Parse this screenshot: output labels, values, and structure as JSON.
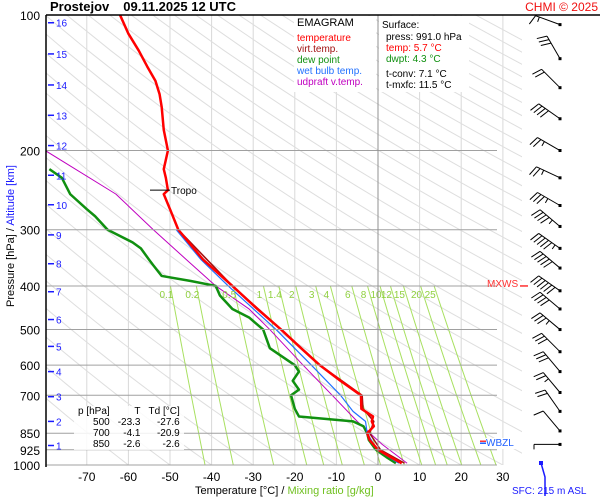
{
  "header": {
    "station": "Prostejov",
    "datetime": "09.11.2025 12 UTC",
    "copyright": "CHMI © 2025"
  },
  "legend": {
    "title": "EMAGRAM",
    "items": [
      {
        "label": "temperature",
        "color": "#ff0000"
      },
      {
        "label": "virt.temp.",
        "color": "#a01010"
      },
      {
        "label": "dew point",
        "color": "#109010"
      },
      {
        "label": "wet bulb temp.",
        "color": "#2070ff"
      },
      {
        "label": "udpraft v.temp.",
        "color": "#c000c0"
      }
    ]
  },
  "surface": {
    "title": "Surface:",
    "press": "press: 991.0 hPa",
    "temp": "temp: 5.7 °C",
    "dwpt": "dwpt: 4.3 °C",
    "tconv": "t-conv: 7.1 °C",
    "tmxfc": "t-mxfc: 11.5 °C"
  },
  "table": {
    "headers": [
      "p [hPa]",
      "T",
      "Td [°C]"
    ],
    "rows": [
      [
        "500",
        "-23.3",
        "-27.6"
      ],
      [
        "700",
        "-4.1",
        "-20.9"
      ],
      [
        "850",
        "-2.6",
        "-2.6"
      ]
    ]
  },
  "labels": {
    "ylabel_pressure": "Pressure [hPa]",
    "ylabel_sep": " / ",
    "ylabel_alt": "Altitude [km]",
    "xlabel_temp": "Temperature [°C]",
    "xlabel_sep": " / ",
    "xlabel_mix": "Mixing ratio [g/kg]",
    "sfc": "SFC: 215 m ASL",
    "mxws": "MXWS",
    "wbzl": "WBZL",
    "tropo": "Tropo"
  },
  "chart_data": {
    "type": "line",
    "title": "Prostejov 09.11.2025 12 UTC",
    "xlabel": "Temperature [°C] / Mixing ratio [g/kg]",
    "ylabel": "Pressure [hPa] / Altitude [km]",
    "xlim": [
      -80,
      35
    ],
    "ylim": [
      1000,
      100
    ],
    "x_ticks": [
      -70,
      -60,
      -50,
      -40,
      -30,
      -20,
      -10,
      0,
      10,
      20,
      30
    ],
    "p_ticks": [
      100,
      200,
      300,
      400,
      500,
      600,
      700,
      850,
      925,
      1000
    ],
    "alt_ticks": [
      {
        "km": 1,
        "p": 905
      },
      {
        "km": 2,
        "p": 800
      },
      {
        "km": 3,
        "p": 705
      },
      {
        "km": 4,
        "p": 620
      },
      {
        "km": 5,
        "p": 545
      },
      {
        "km": 6,
        "p": 475
      },
      {
        "km": 7,
        "p": 412
      },
      {
        "km": 8,
        "p": 357
      },
      {
        "km": 9,
        "p": 308
      },
      {
        "km": 10,
        "p": 264
      },
      {
        "km": 11,
        "p": 227
      },
      {
        "km": 12,
        "p": 195
      },
      {
        "km": 13,
        "p": 167
      },
      {
        "km": 14,
        "p": 143
      },
      {
        "km": 15,
        "p": 122
      },
      {
        "km": 16,
        "p": 104
      }
    ],
    "mixing_ratios": [
      "0.1",
      "0.2",
      "0.5",
      "1",
      "1.4",
      "2",
      "3",
      "4",
      "6",
      "8",
      "10",
      "12",
      "15",
      "20",
      "25"
    ],
    "tropopause_p": 245,
    "mxws_p": 400,
    "wbzl_p": 890,
    "series": [
      {
        "name": "temperature",
        "color": "#ff0000",
        "points": [
          [
            991,
            5.7
          ],
          [
            960,
            3
          ],
          [
            925,
            0
          ],
          [
            880,
            -2
          ],
          [
            850,
            -2.6
          ],
          [
            820,
            -1
          ],
          [
            800,
            -1.5
          ],
          [
            780,
            -1.2
          ],
          [
            750,
            -4
          ],
          [
            700,
            -4.1
          ],
          [
            650,
            -9
          ],
          [
            600,
            -14
          ],
          [
            550,
            -18.5
          ],
          [
            500,
            -23.3
          ],
          [
            450,
            -29
          ],
          [
            400,
            -35
          ],
          [
            350,
            -42
          ],
          [
            320,
            -45.5
          ],
          [
            300,
            -48
          ],
          [
            270,
            -50
          ],
          [
            250,
            -51.5
          ],
          [
            245,
            -50.5
          ],
          [
            230,
            -51
          ],
          [
            220,
            -51.5
          ],
          [
            200,
            -50.5
          ],
          [
            180,
            -51.5
          ],
          [
            160,
            -52
          ],
          [
            150,
            -52.5
          ],
          [
            140,
            -53.5
          ],
          [
            130,
            -55.5
          ],
          [
            120,
            -57.5
          ],
          [
            110,
            -60
          ],
          [
            100,
            -62
          ]
        ]
      },
      {
        "name": "virt.temp.",
        "color": "#a01010",
        "points": [
          [
            991,
            6.4
          ],
          [
            925,
            0.6
          ],
          [
            850,
            -2
          ],
          [
            800,
            -1
          ],
          [
            750,
            -3.6
          ],
          [
            700,
            -3.8
          ],
          [
            600,
            -13.9
          ],
          [
            500,
            -23.2
          ],
          [
            400,
            -35
          ],
          [
            300,
            -48
          ]
        ]
      },
      {
        "name": "dew point",
        "color": "#109010",
        "points": [
          [
            991,
            4.3
          ],
          [
            960,
            2
          ],
          [
            925,
            -0.5
          ],
          [
            880,
            -2.2
          ],
          [
            850,
            -2.6
          ],
          [
            820,
            -3.5
          ],
          [
            800,
            -6
          ],
          [
            780,
            -19
          ],
          [
            750,
            -20
          ],
          [
            700,
            -20.9
          ],
          [
            680,
            -19
          ],
          [
            650,
            -20.5
          ],
          [
            620,
            -19
          ],
          [
            600,
            -20
          ],
          [
            550,
            -26
          ],
          [
            500,
            -27.6
          ],
          [
            470,
            -31
          ],
          [
            450,
            -35
          ],
          [
            420,
            -38
          ],
          [
            400,
            -39
          ],
          [
            390,
            -45
          ],
          [
            380,
            -52
          ],
          [
            360,
            -54
          ],
          [
            350,
            -55
          ],
          [
            330,
            -57
          ],
          [
            320,
            -59
          ],
          [
            300,
            -65
          ],
          [
            280,
            -68
          ],
          [
            270,
            -70
          ],
          [
            250,
            -74
          ],
          [
            230,
            -76
          ],
          [
            220,
            -79
          ]
        ]
      },
      {
        "name": "wet bulb temp.",
        "color": "#2070ff",
        "points": [
          [
            991,
            5
          ],
          [
            925,
            -0.2
          ],
          [
            850,
            -2.6
          ],
          [
            800,
            -3
          ],
          [
            760,
            -6
          ],
          [
            700,
            -9
          ],
          [
            600,
            -16
          ],
          [
            500,
            -24.5
          ],
          [
            400,
            -36
          ],
          [
            350,
            -42.5
          ],
          [
            300,
            -48.5
          ]
        ]
      },
      {
        "name": "udpraft v.temp.",
        "color": "#c000c0",
        "points": [
          [
            991,
            7
          ],
          [
            900,
            1
          ],
          [
            800,
            -5
          ],
          [
            700,
            -11
          ],
          [
            600,
            -18
          ],
          [
            500,
            -26
          ],
          [
            450,
            -31
          ],
          [
            400,
            -39
          ],
          [
            350,
            -46
          ],
          [
            300,
            -54
          ],
          [
            250,
            -63
          ],
          [
            200,
            -80
          ]
        ]
      }
    ],
    "wind_barbs": [
      {
        "p": 105,
        "dir": 250,
        "kt": 15
      },
      {
        "p": 125,
        "dir": 210,
        "kt": 30
      },
      {
        "p": 145,
        "dir": 225,
        "kt": 20
      },
      {
        "p": 170,
        "dir": 235,
        "kt": 40
      },
      {
        "p": 200,
        "dir": 240,
        "kt": 25
      },
      {
        "p": 230,
        "dir": 245,
        "kt": 25
      },
      {
        "p": 265,
        "dir": 240,
        "kt": 35
      },
      {
        "p": 295,
        "dir": 230,
        "kt": 45
      },
      {
        "p": 330,
        "dir": 235,
        "kt": 55
      },
      {
        "p": 365,
        "dir": 230,
        "kt": 50
      },
      {
        "p": 410,
        "dir": 235,
        "kt": 60
      },
      {
        "p": 450,
        "dir": 230,
        "kt": 40
      },
      {
        "p": 500,
        "dir": 230,
        "kt": 35
      },
      {
        "p": 560,
        "dir": 225,
        "kt": 30
      },
      {
        "p": 620,
        "dir": 220,
        "kt": 30
      },
      {
        "p": 690,
        "dir": 220,
        "kt": 25
      },
      {
        "p": 760,
        "dir": 215,
        "kt": 20
      },
      {
        "p": 840,
        "dir": 220,
        "kt": 10
      },
      {
        "p": 900,
        "dir": 270,
        "kt": 5
      }
    ]
  }
}
